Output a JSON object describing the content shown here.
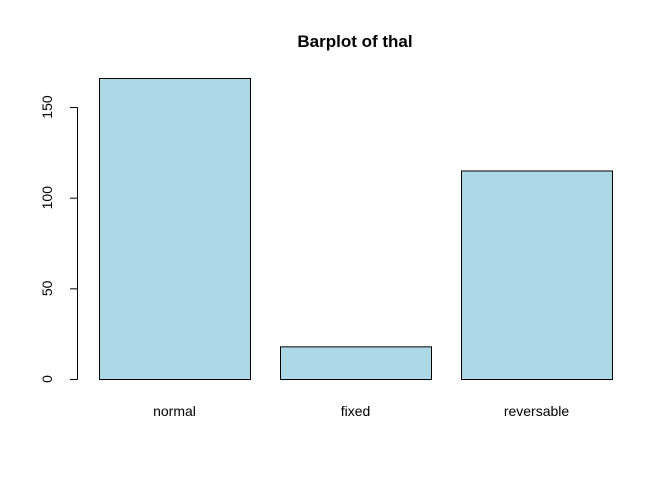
{
  "chart_data": {
    "type": "bar",
    "title": "Barplot of thal",
    "xlabel": "",
    "ylabel": "",
    "categories": [
      "normal",
      "fixed",
      "reversable"
    ],
    "values": [
      166,
      18,
      115
    ],
    "ylim": [
      0,
      166
    ],
    "yticks": [
      0,
      50,
      100,
      150
    ],
    "bar_color": "#add8e6",
    "grid": false,
    "legend": "none"
  }
}
